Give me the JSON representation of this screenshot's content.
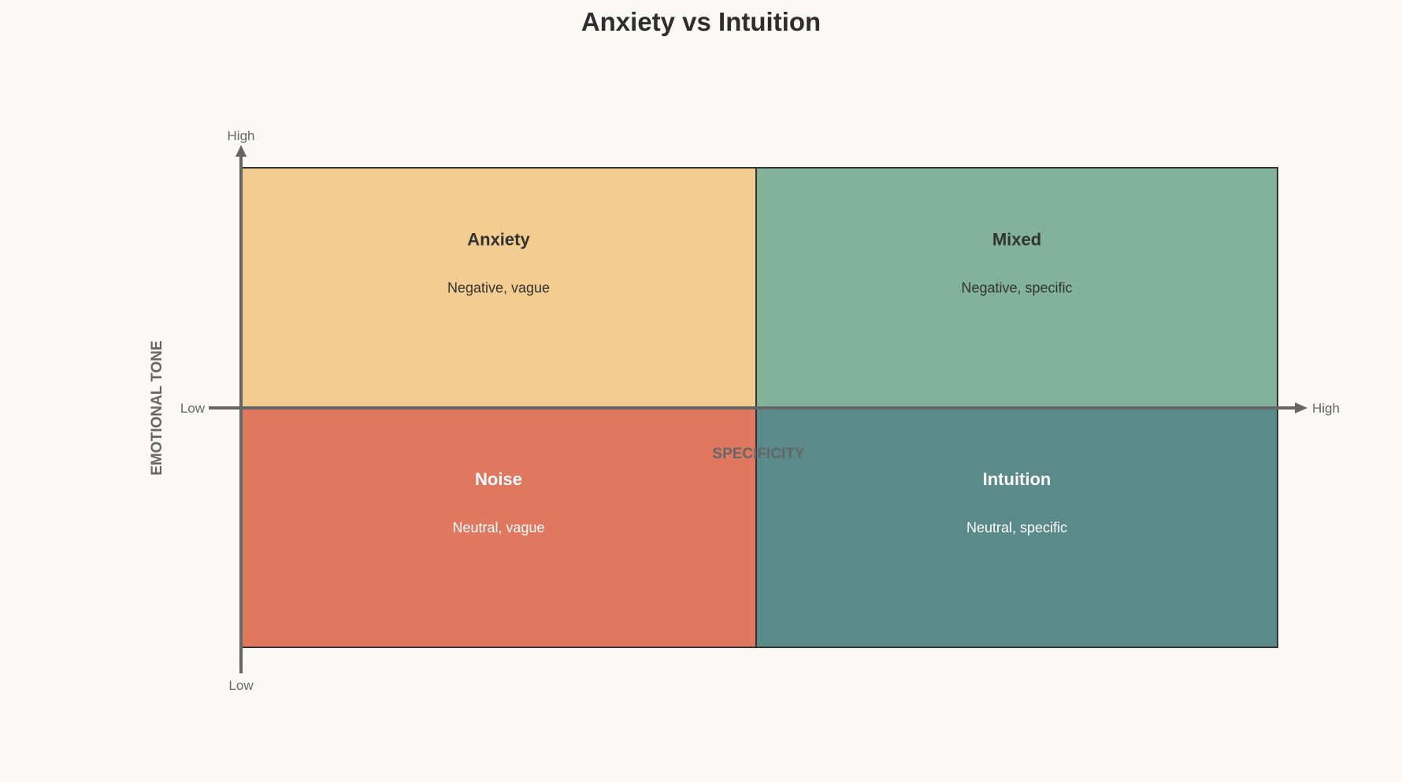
{
  "title": "Anxiety vs Intuition",
  "axes": {
    "x": {
      "label": "SPECIFICITY",
      "low": "Low",
      "high": "High"
    },
    "y": {
      "label": "EMOTIONAL TONE",
      "low": "Low",
      "high": "High"
    }
  },
  "quadrants": [
    {
      "title": "Anxiety",
      "subtitle": "Negative, vague",
      "color": "#f2cc91",
      "text_color": "#333333",
      "position": "top-left"
    },
    {
      "title": "Mixed",
      "subtitle": "Negative, specific",
      "color": "#83b29c",
      "text_color": "#333333",
      "position": "top-right"
    },
    {
      "title": "Noise",
      "subtitle": "Neutral, vague",
      "color": "#e07860",
      "text_color": "#ffffff",
      "position": "bottom-left"
    },
    {
      "title": "Intuition",
      "subtitle": "Neutral, specific",
      "color": "#5a8a89",
      "text_color": "#ffffff",
      "position": "bottom-right"
    }
  ],
  "colors": {
    "background": "#faf9f6",
    "border": "#333333",
    "axis": "#666666"
  }
}
